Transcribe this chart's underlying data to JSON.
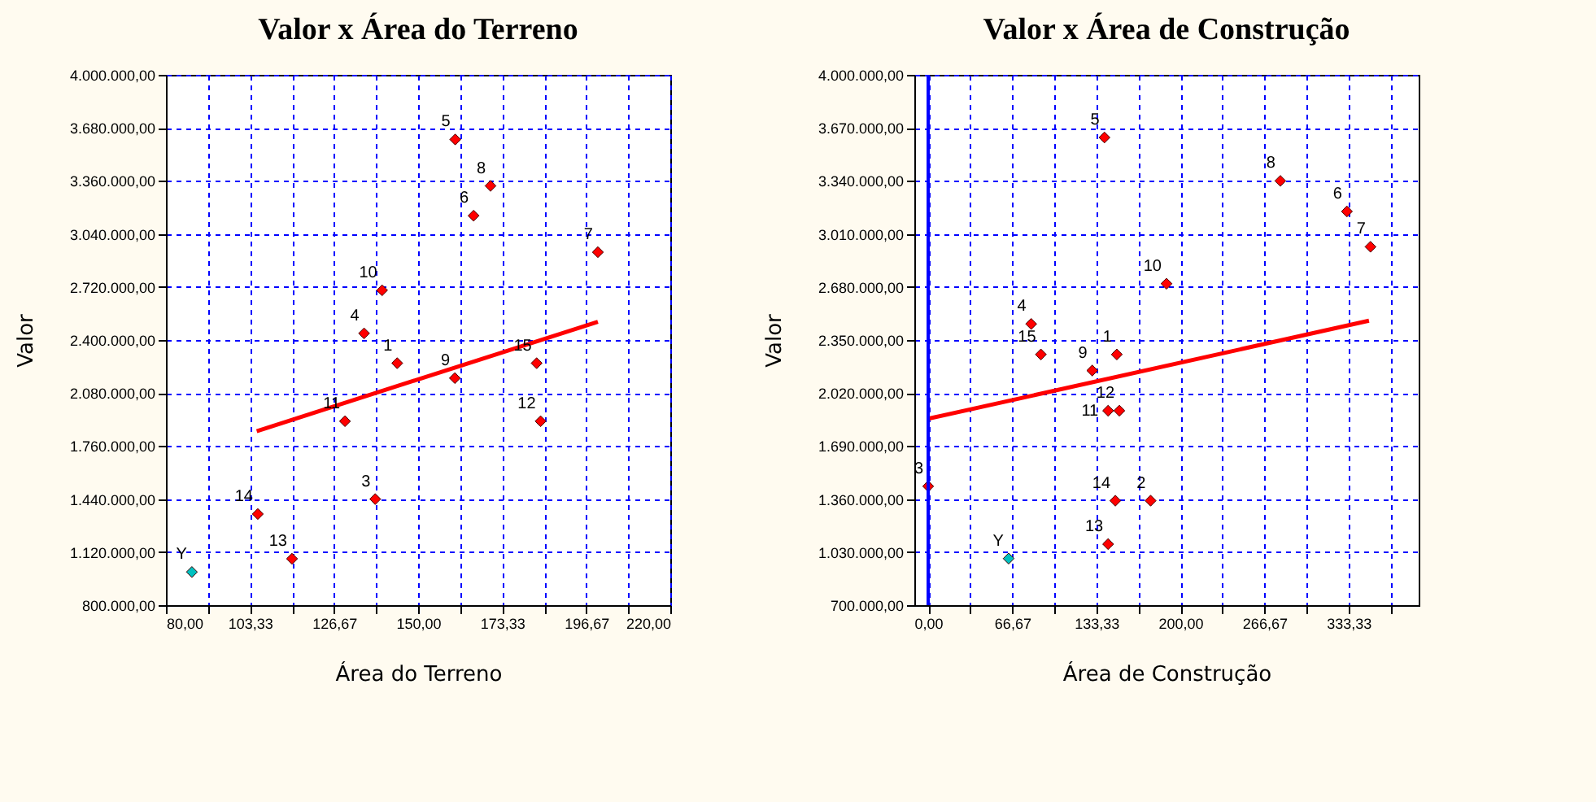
{
  "chart_data": [
    {
      "type": "scatter",
      "title": "Valor x Área do Terreno",
      "xlabel": "Área do Terreno",
      "ylabel": "Valor",
      "xlim": [
        80,
        220
      ],
      "ylim": [
        800000,
        4000000
      ],
      "xticks": [
        {
          "value": 80,
          "label": "80,00"
        },
        {
          "value": 91.67,
          "label": null
        },
        {
          "value": 103.33,
          "label": "103,33"
        },
        {
          "value": 115,
          "label": null
        },
        {
          "value": 126.67,
          "label": "126,67"
        },
        {
          "value": 138.33,
          "label": null
        },
        {
          "value": 150,
          "label": "150,00"
        },
        {
          "value": 161.67,
          "label": null
        },
        {
          "value": 173.33,
          "label": "173,33"
        },
        {
          "value": 185,
          "label": null
        },
        {
          "value": 196.67,
          "label": "196,67"
        },
        {
          "value": 208.33,
          "label": null
        },
        {
          "value": 220,
          "label": "220,00"
        }
      ],
      "yticks": [
        {
          "value": 800000,
          "label": "800.000,00"
        },
        {
          "value": 1120000,
          "label": "1.120.000,00"
        },
        {
          "value": 1440000,
          "label": "1.440.000,00"
        },
        {
          "value": 1760000,
          "label": "1.760.000,00"
        },
        {
          "value": 2080000,
          "label": "2.080.000,00"
        },
        {
          "value": 2400000,
          "label": "2.400.000,00"
        },
        {
          "value": 2720000,
          "label": "2.720.000,00"
        },
        {
          "value": 3040000,
          "label": "3.040.000,00"
        },
        {
          "value": 3360000,
          "label": "3.360.000,00"
        },
        {
          "value": 3680000,
          "label": "3.680.000,00"
        },
        {
          "value": 4000000,
          "label": "4.000.000,00"
        }
      ],
      "grid": true,
      "series": [
        {
          "marker": "diamond",
          "color": "#ff0000",
          "x": [
            144.2,
            138.1,
            135,
            160.3,
            165.4,
            199.9,
            170.1,
            160.2,
            140,
            129.7,
            184,
            105.5,
            115,
            182.9
          ],
          "values": [
            2260000,
            1440000,
            2440000,
            3610000,
            3150000,
            2930000,
            3330000,
            2170000,
            2700000,
            1910000,
            1910000,
            1350000,
            1080000,
            2260000
          ]
        },
        {
          "marker": "diamond",
          "color": "#00c0c0",
          "x": [
            87.2
          ],
          "values": [
            1000000
          ]
        },
        {
          "type": "line",
          "color": "#ff0000",
          "line_style": "solid",
          "x": [
            105.2,
            199.9
          ],
          "values": [
            1850000,
            2510000
          ]
        }
      ],
      "annotations": [
        {
          "text": "1",
          "x": 144.2,
          "y": 2260000
        },
        {
          "text": "3",
          "x": 138.1,
          "y": 1440000
        },
        {
          "text": "4",
          "x": 135,
          "y": 2440000
        },
        {
          "text": "5",
          "x": 160.3,
          "y": 3610000
        },
        {
          "text": "6",
          "x": 165.4,
          "y": 3150000
        },
        {
          "text": "7",
          "x": 199.9,
          "y": 2930000
        },
        {
          "text": "8",
          "x": 170.1,
          "y": 3330000
        },
        {
          "text": "9",
          "x": 160.2,
          "y": 2170000
        },
        {
          "text": "10",
          "x": 140,
          "y": 2700000
        },
        {
          "text": "11",
          "x": 129.7,
          "y": 1910000
        },
        {
          "text": "12",
          "x": 184,
          "y": 1910000
        },
        {
          "text": "14",
          "x": 105.5,
          "y": 1350000
        },
        {
          "text": "13",
          "x": 115,
          "y": 1080000
        },
        {
          "text": "15",
          "x": 182.9,
          "y": 2260000
        },
        {
          "text": "Y",
          "x": 87.2,
          "y": 1000000
        }
      ]
    },
    {
      "type": "scatter",
      "title": "Valor x Área de Construção",
      "xlabel": "Área de Construção",
      "ylabel": "Valor",
      "xlim": [
        -11,
        389
      ],
      "ylim": [
        700000,
        4000000
      ],
      "xticks": [
        {
          "value": 0,
          "label": "0,00"
        },
        {
          "value": 33.33,
          "label": null
        },
        {
          "value": 66.67,
          "label": "66,67"
        },
        {
          "value": 100,
          "label": null
        },
        {
          "value": 133.33,
          "label": "133,33"
        },
        {
          "value": 166.67,
          "label": null
        },
        {
          "value": 200,
          "label": "200,00"
        },
        {
          "value": 233.33,
          "label": null
        },
        {
          "value": 266.67,
          "label": "266,67"
        },
        {
          "value": 300,
          "label": null
        },
        {
          "value": 333.33,
          "label": "333,33"
        },
        {
          "value": 366.67,
          "label": null
        }
      ],
      "yticks": [
        {
          "value": 700000,
          "label": "700.000,00"
        },
        {
          "value": 1030000,
          "label": "1.030.000,00"
        },
        {
          "value": 1360000,
          "label": "1.360.000,00"
        },
        {
          "value": 1690000,
          "label": "1.690.000,00"
        },
        {
          "value": 2020000,
          "label": "2.020.000,00"
        },
        {
          "value": 2350000,
          "label": "2.350.000,00"
        },
        {
          "value": 2680000,
          "label": "2.680.000,00"
        },
        {
          "value": 3010000,
          "label": "3.010.000,00"
        },
        {
          "value": 3340000,
          "label": "3.340.000,00"
        },
        {
          "value": 3670000,
          "label": "3.670.000,00"
        },
        {
          "value": 4000000,
          "label": "4.000.000,00"
        }
      ],
      "grid": true,
      "ref_lines": [
        {
          "axis": "x",
          "value": 0,
          "color": "#0000ff",
          "line_style": "solid"
        }
      ],
      "series": [
        {
          "marker": "diamond",
          "color": "#ff0000",
          "x": [
            149.6,
            176.4,
            0,
            81.7,
            139.8,
            332.1,
            350.8,
            279.3,
            130.1,
            189,
            142.7,
            151.6,
            142.7,
            148.4,
            89.4
          ],
          "values": [
            2260000,
            1350000,
            1440000,
            2450000,
            3610000,
            3150000,
            2930000,
            3340000,
            2160000,
            2700000,
            1910000,
            1910000,
            1080000,
            1350000,
            2260000
          ]
        },
        {
          "marker": "diamond",
          "color": "#00c0c0",
          "x": [
            63.8
          ],
          "values": [
            990000
          ]
        },
        {
          "type": "line",
          "color": "#ff0000",
          "line_style": "solid",
          "x": [
            0,
            349.6
          ],
          "values": [
            1860000,
            2470000
          ]
        }
      ],
      "annotations": [
        {
          "text": "1",
          "x": 149.6,
          "y": 2260000
        },
        {
          "text": "2",
          "x": 176.4,
          "y": 1350000
        },
        {
          "text": "3",
          "x": 0,
          "y": 1440000
        },
        {
          "text": "4",
          "x": 81.7,
          "y": 2450000
        },
        {
          "text": "5",
          "x": 139.8,
          "y": 3610000
        },
        {
          "text": "6",
          "x": 332.1,
          "y": 3150000
        },
        {
          "text": "7",
          "x": 350.8,
          "y": 2930000
        },
        {
          "text": "8",
          "x": 279.3,
          "y": 3340000
        },
        {
          "text": "9",
          "x": 130.1,
          "y": 2160000
        },
        {
          "text": "10",
          "x": 189,
          "y": 2700000
        },
        {
          "text": "11",
          "x": 142.7,
          "y": 1910000
        },
        {
          "text": "12",
          "x": 151.6,
          "y": 1910000
        },
        {
          "text": "13",
          "x": 142.7,
          "y": 1080000
        },
        {
          "text": "14",
          "x": 148.4,
          "y": 1350000
        },
        {
          "text": "15",
          "x": 89.4,
          "y": 2260000
        },
        {
          "text": "Y",
          "x": 63.8,
          "y": 990000
        }
      ]
    }
  ]
}
